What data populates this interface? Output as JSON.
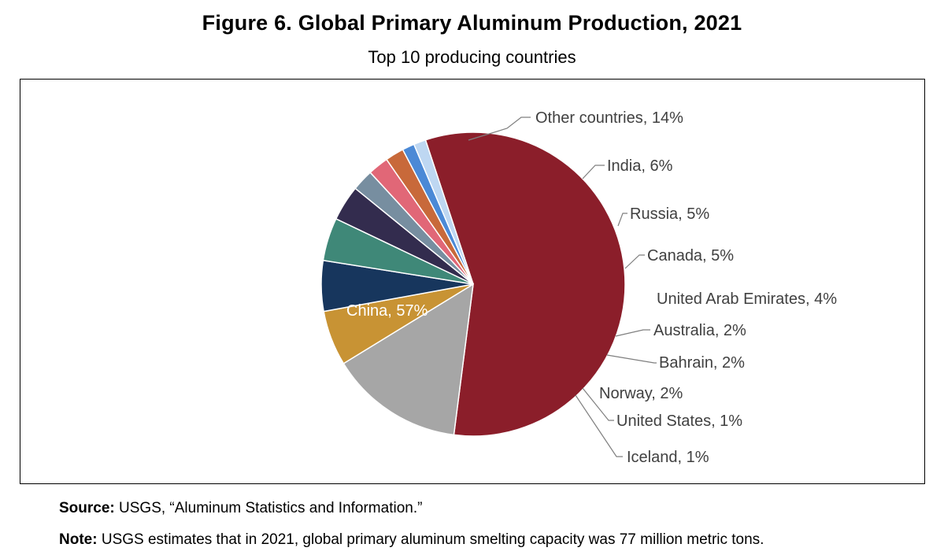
{
  "header": {
    "title": "Figure 6. Global Primary Aluminum Production, 2021",
    "subtitle": "Top 10 producing countries"
  },
  "footer": {
    "source_label": "Source:",
    "source_text": "USGS, “Aluminum Statistics and Information.”",
    "note_label": "Note:",
    "note_text": "USGS estimates that in 2021, global primary aluminum smelting capacity was 77 million metric tons."
  },
  "chart_data": {
    "type": "pie",
    "title": "Figure 6. Global Primary Aluminum Production, 2021",
    "subtitle": "Top 10 producing countries",
    "unit": "%",
    "slices": [
      {
        "label": "China, 57%",
        "category": "China",
        "value": 57.4,
        "color": "#8b1e2a"
      },
      {
        "label": "Other countries, 14%",
        "category": "Other countries",
        "value": 14.3,
        "color": "#a6a6a6"
      },
      {
        "label": "India, 6%",
        "category": "India",
        "value": 5.9,
        "color": "#c89334"
      },
      {
        "label": "Russia, 5%",
        "category": "Russia",
        "value": 5.4,
        "color": "#17365d"
      },
      {
        "label": "Canada, 5%",
        "category": "Canada",
        "value": 4.6,
        "color": "#3f8878"
      },
      {
        "label": "United Arab Emirates, 4%",
        "category": "United Arab Emirates",
        "value": 3.8,
        "color": "#332c4e"
      },
      {
        "label": "Australia, 2%",
        "category": "Australia",
        "value": 2.3,
        "color": "#778ea0"
      },
      {
        "label": "Bahrain, 2%",
        "category": "Bahrain",
        "value": 2.2,
        "color": "#e16777"
      },
      {
        "label": "Norway, 2%",
        "category": "Norway",
        "value": 2.0,
        "color": "#c8693a"
      },
      {
        "label": "United States, 1%",
        "category": "United States",
        "value": 1.3,
        "color": "#4b89d6"
      },
      {
        "label": "Iceland, 1%",
        "category": "Iceland",
        "value": 1.3,
        "color": "#bed7f2"
      }
    ],
    "start_angle_deg": -18.3,
    "direction": "clockwise",
    "legend": "none (leader-line data labels)"
  }
}
